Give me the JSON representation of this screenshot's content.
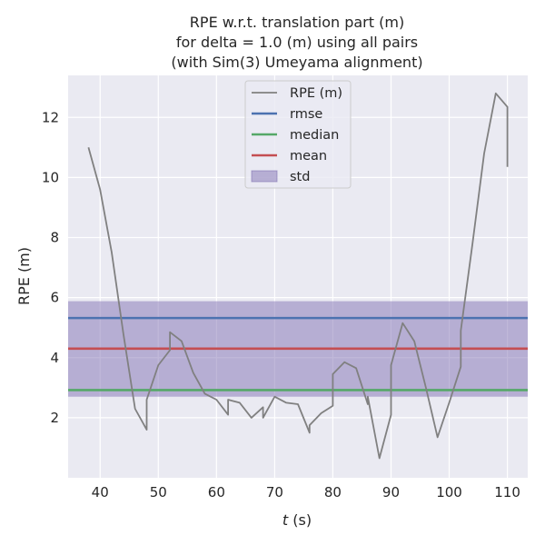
{
  "chart_data": {
    "type": "line",
    "title_lines": [
      "RPE w.r.t. translation part (m)",
      "for delta = 1.0 (m) using all pairs",
      "(with Sim(3) Umeyama alignment)"
    ],
    "xlabel_italic": "t",
    "xlabel_rest": " (s)",
    "ylabel": "RPE (m)",
    "xlim": [
      34.5,
      113.5
    ],
    "ylim": [
      0.0,
      13.4
    ],
    "xticks": [
      40,
      50,
      60,
      70,
      80,
      90,
      100,
      110
    ],
    "xtick_labels": [
      "40",
      "50",
      "60",
      "70",
      "80",
      "90",
      "100",
      "110"
    ],
    "yticks": [
      2,
      4,
      6,
      8,
      10,
      12
    ],
    "ytick_labels": [
      "2",
      "4",
      "6",
      "8",
      "10",
      "12"
    ],
    "grid": true,
    "legend_position": "upper-center",
    "series": [
      {
        "name": "RPE (m)",
        "color": "#808080",
        "x": [
          38,
          40,
          42,
          44,
          46,
          48,
          48,
          50,
          52,
          52,
          54,
          56,
          58,
          60,
          62,
          62,
          64,
          66,
          68,
          68,
          70,
          72,
          74,
          76,
          76,
          78,
          80,
          80,
          82,
          84,
          86,
          86,
          88,
          90,
          90,
          92,
          94,
          96,
          98,
          100,
          102,
          102,
          104,
          106,
          108,
          110,
          110
        ],
        "y": [
          11.0,
          9.6,
          7.5,
          4.8,
          2.3,
          1.6,
          2.6,
          3.75,
          4.25,
          4.85,
          4.55,
          3.5,
          2.8,
          2.6,
          2.1,
          2.6,
          2.5,
          2.0,
          2.35,
          2.0,
          2.7,
          2.5,
          2.45,
          1.5,
          1.75,
          2.15,
          2.4,
          3.45,
          3.85,
          3.65,
          2.45,
          2.7,
          0.65,
          2.1,
          3.75,
          5.15,
          4.55,
          3.0,
          1.35,
          2.5,
          3.7,
          4.9,
          7.8,
          10.8,
          12.8,
          12.35,
          10.35
        ]
      }
    ],
    "stats": [
      {
        "name": "rmse",
        "value": 5.32,
        "color": "#4c72b0"
      },
      {
        "name": "median",
        "value": 2.92,
        "color": "#55a868"
      },
      {
        "name": "mean",
        "value": 4.3,
        "color": "#c44e52"
      }
    ],
    "std_band": {
      "name": "std",
      "lower": 2.7,
      "upper": 5.88,
      "color": "#8172b3"
    }
  }
}
